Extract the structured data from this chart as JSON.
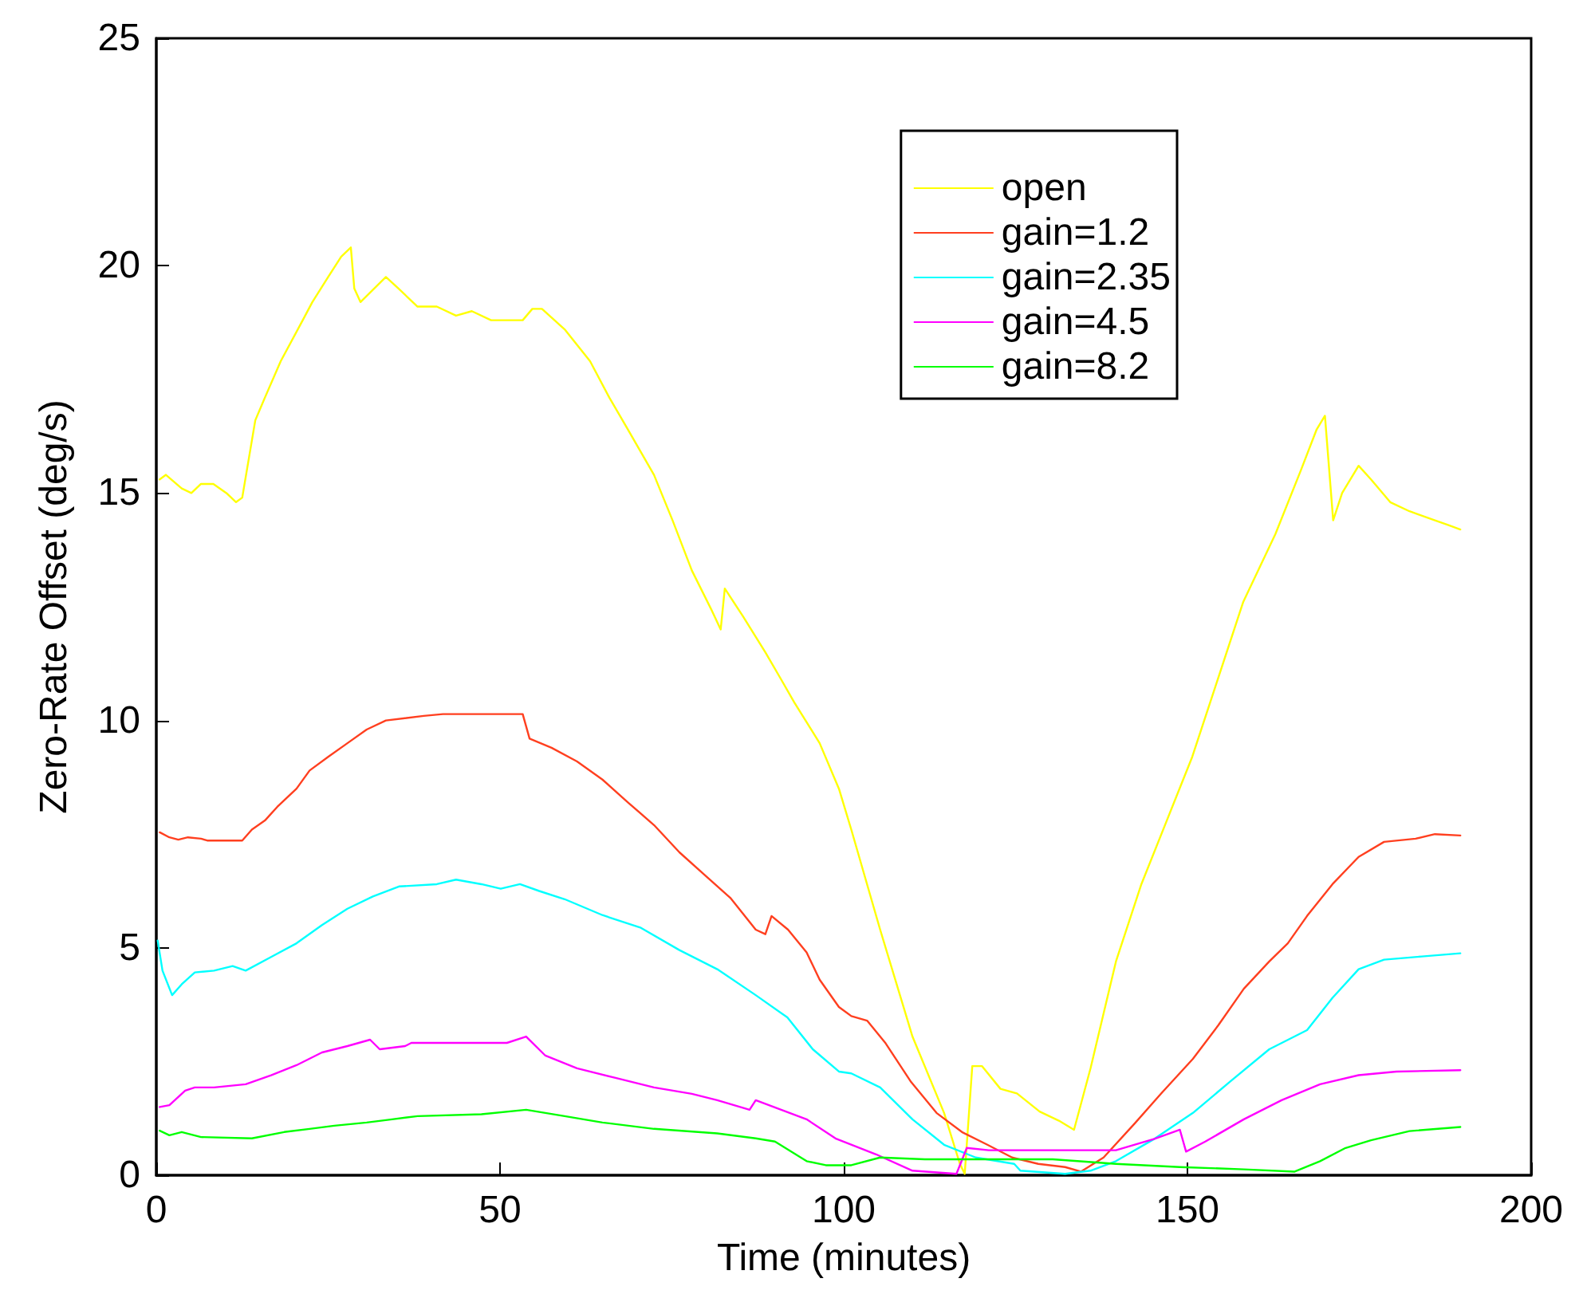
{
  "chart_data": {
    "type": "line",
    "xlabel": "Time (minutes)",
    "ylabel": "Zero-Rate Offset (deg/s)",
    "xlim": [
      0,
      200
    ],
    "xticks": [
      0,
      50,
      100,
      150,
      200
    ],
    "ylim": [
      0,
      25
    ],
    "yticks": [
      0,
      5,
      10,
      15,
      20,
      25
    ],
    "grid": false,
    "legend": "top right",
    "marker": "none",
    "line_style": "solid",
    "series": [
      {
        "name": "open",
        "color": "#ffff00",
        "x": [
          0.5,
          1.4,
          3.7,
          5.1,
          6.5,
          8.3,
          10.2,
          11.6,
          12.5,
          14.4,
          15.8,
          18.1,
          21.3,
          22.7,
          25.0,
          26.9,
          28.3,
          28.8,
          29.7,
          33.4,
          35.2,
          38.0,
          40.8,
          43.6,
          45.9,
          48.7,
          51.5,
          53.3,
          54.7,
          56.1,
          59.4,
          63.1,
          65.9,
          68.6,
          72.4,
          75.1,
          77.9,
          80.7,
          82.1,
          82.7,
          85.3,
          88.6,
          90.9,
          92.8,
          96.5,
          99.3,
          101.1,
          105.3,
          110.0,
          114.6,
          116.9,
          117.6,
          118.7,
          120.1,
          122.8,
          125.2,
          128.5,
          131.3,
          133.5,
          135.9,
          139.6,
          143.3,
          147.0,
          150.7,
          154.4,
          158.1,
          162.8,
          166.5,
          168.8,
          170.0,
          171.2,
          172.5,
          174.9,
          176.7,
          179.5,
          182.3,
          186.0,
          187.9,
          189.7
        ],
        "values": [
          15.3,
          15.4,
          15.1,
          15.0,
          15.2,
          15.2,
          15.0,
          14.8,
          14.9,
          16.6,
          17.1,
          17.9,
          18.8,
          19.2,
          19.75,
          20.2,
          20.4,
          19.5,
          19.2,
          19.75,
          19.5,
          19.1,
          19.1,
          18.9,
          19.0,
          18.8,
          18.8,
          18.8,
          19.05,
          19.05,
          18.6,
          17.9,
          17.1,
          16.4,
          15.4,
          14.4,
          13.3,
          12.45,
          12.0,
          12.9,
          12.3,
          11.5,
          10.9,
          10.4,
          9.5,
          8.5,
          7.6,
          5.4,
          3.05,
          1.37,
          0.25,
          0.03,
          2.4,
          2.4,
          1.9,
          1.8,
          1.4,
          1.2,
          1.0,
          2.35,
          4.7,
          6.4,
          7.8,
          9.2,
          10.9,
          12.6,
          14.1,
          15.5,
          16.4,
          16.7,
          14.4,
          15.0,
          15.6,
          15.3,
          14.8,
          14.6,
          14.4,
          14.3,
          14.2
        ]
      },
      {
        "name": "gain=1.2",
        "color": "#ff3f1f",
        "x": [
          0.5,
          1.9,
          3.2,
          4.6,
          6.5,
          7.4,
          12.5,
          13.9,
          15.8,
          17.6,
          20.4,
          22.3,
          25.0,
          27.8,
          30.6,
          33.4,
          38.9,
          41.7,
          47.3,
          53.3,
          54.3,
          57.5,
          61.2,
          64.9,
          68.6,
          72.4,
          76.1,
          79.8,
          83.5,
          87.2,
          88.6,
          89.5,
          91.9,
          94.6,
          96.5,
          99.3,
          101.1,
          103.4,
          106.1,
          109.8,
          113.5,
          117.2,
          120.9,
          124.5,
          128.3,
          132.2,
          134.5,
          137.8,
          142.4,
          146.2,
          150.8,
          154.5,
          158.2,
          161.9,
          164.6,
          167.4,
          171.1,
          174.9,
          178.6,
          183.2,
          186.0,
          189.7
        ],
        "values": [
          7.54,
          7.43,
          7.38,
          7.43,
          7.4,
          7.36,
          7.36,
          7.6,
          7.8,
          8.1,
          8.5,
          8.9,
          9.2,
          9.5,
          9.8,
          10.0,
          10.1,
          10.14,
          10.14,
          10.14,
          9.6,
          9.4,
          9.1,
          8.7,
          8.2,
          7.7,
          7.1,
          6.6,
          6.1,
          5.4,
          5.3,
          5.7,
          5.4,
          4.9,
          4.3,
          3.7,
          3.5,
          3.4,
          2.9,
          2.05,
          1.37,
          0.95,
          0.67,
          0.39,
          0.25,
          0.18,
          0.08,
          0.39,
          1.15,
          1.8,
          2.56,
          3.3,
          4.1,
          4.7,
          5.1,
          5.7,
          6.4,
          7.0,
          7.33,
          7.4,
          7.5,
          7.47
        ]
      },
      {
        "name": "gain=2.35",
        "color": "#00ffff",
        "x": [
          0.2,
          0.9,
          2.3,
          3.7,
          5.6,
          8.4,
          11.1,
          13.0,
          16.7,
          20.4,
          24.1,
          27.8,
          31.5,
          35.3,
          40.8,
          43.6,
          47.3,
          50.1,
          52.9,
          55.7,
          59.4,
          64.9,
          70.5,
          76.1,
          81.6,
          87.2,
          91.8,
          95.5,
          99.3,
          101.1,
          105.3,
          110.0,
          114.6,
          119.2,
          124.8,
          125.7,
          132.2,
          135.9,
          139.6,
          145.2,
          150.8,
          156.3,
          161.9,
          167.4,
          171.1,
          174.9,
          178.6,
          184.1,
          189.7
        ],
        "values": [
          5.16,
          4.5,
          3.96,
          4.2,
          4.46,
          4.5,
          4.6,
          4.5,
          4.8,
          5.1,
          5.5,
          5.86,
          6.13,
          6.35,
          6.4,
          6.5,
          6.4,
          6.3,
          6.4,
          6.25,
          6.07,
          5.72,
          5.44,
          4.95,
          4.53,
          3.96,
          3.47,
          2.77,
          2.28,
          2.24,
          1.93,
          1.23,
          0.67,
          0.39,
          0.25,
          0.1,
          0.03,
          0.1,
          0.31,
          0.8,
          1.37,
          2.07,
          2.77,
          3.19,
          3.9,
          4.53,
          4.74,
          4.81,
          4.88
        ]
      },
      {
        "name": "gain=4.5",
        "color": "#ff00ff",
        "x": [
          0.5,
          1.9,
          4.2,
          5.6,
          8.4,
          13.0,
          16.7,
          20.4,
          24.1,
          27.8,
          31.1,
          32.5,
          36.2,
          37.1,
          51.0,
          53.8,
          56.6,
          61.2,
          66.8,
          72.4,
          77.9,
          81.6,
          86.3,
          87.2,
          90.9,
          94.6,
          98.8,
          104.7,
          110.0,
          116.4,
          117.9,
          121.1,
          139.6,
          145.2,
          148.9,
          149.8,
          152.6,
          158.2,
          163.7,
          169.3,
          174.9,
          180.4,
          189.7
        ],
        "values": [
          1.5,
          1.54,
          1.86,
          1.93,
          1.93,
          2.0,
          2.2,
          2.42,
          2.7,
          2.84,
          2.98,
          2.77,
          2.84,
          2.91,
          2.91,
          3.05,
          2.63,
          2.35,
          2.14,
          1.93,
          1.79,
          1.65,
          1.44,
          1.65,
          1.44,
          1.23,
          0.81,
          0.46,
          0.1,
          0.03,
          0.6,
          0.55,
          0.55,
          0.8,
          1.0,
          0.52,
          0.74,
          1.23,
          1.65,
          2.0,
          2.2,
          2.28,
          2.31
        ]
      },
      {
        "name": "gain=8.2",
        "color": "#00ff00",
        "x": [
          0.5,
          1.9,
          3.7,
          6.5,
          13.9,
          18.6,
          22.3,
          25.9,
          30.6,
          34.3,
          38.0,
          47.3,
          53.8,
          59.4,
          64.9,
          72.4,
          81.6,
          87.2,
          90.0,
          94.6,
          97.4,
          101.1,
          105.3,
          111.8,
          121.1,
          130.4,
          139.6,
          148.9,
          158.2,
          165.6,
          169.3,
          173.0,
          176.7,
          182.3,
          189.7
        ],
        "values": [
          0.98,
          0.88,
          0.95,
          0.84,
          0.81,
          0.95,
          1.02,
          1.09,
          1.16,
          1.23,
          1.3,
          1.34,
          1.44,
          1.3,
          1.16,
          1.02,
          0.92,
          0.81,
          0.74,
          0.31,
          0.22,
          0.22,
          0.39,
          0.35,
          0.35,
          0.35,
          0.25,
          0.18,
          0.13,
          0.08,
          0.31,
          0.6,
          0.77,
          0.97,
          1.06
        ]
      }
    ]
  }
}
